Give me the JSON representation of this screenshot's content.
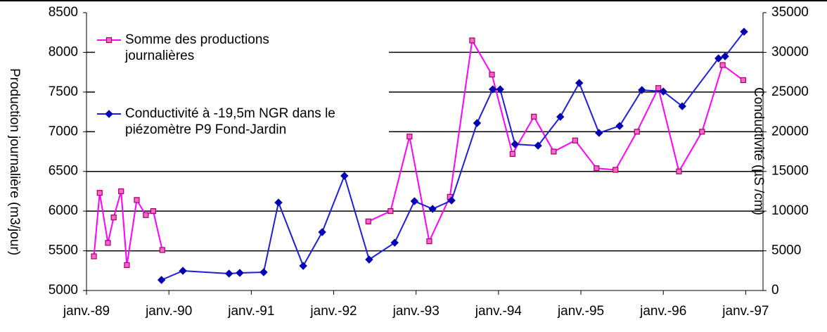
{
  "chart_data": {
    "type": "line",
    "y_label": "Production journalière (m3/jour)",
    "y2_label": "Conductivité (µS /cm)",
    "xlim": [
      1989,
      1997.21
    ],
    "xticks": [
      {
        "value": 1989,
        "label": "janv.-89"
      },
      {
        "value": 1990,
        "label": "janv.-90"
      },
      {
        "value": 1991,
        "label": "janv.-91"
      },
      {
        "value": 1992,
        "label": "janv.-92"
      },
      {
        "value": 1993,
        "label": "janv.-93"
      },
      {
        "value": 1994,
        "label": "janv.-94"
      },
      {
        "value": 1995,
        "label": "janv.-95"
      },
      {
        "value": 1996,
        "label": "janv.-96"
      },
      {
        "value": 1997,
        "label": "janv.-97"
      }
    ],
    "ylim": [
      5000,
      8500
    ],
    "yticks": [
      5000,
      5500,
      6000,
      6500,
      7000,
      7500,
      8000,
      8500
    ],
    "y2lim": [
      0,
      35000
    ],
    "y2ticks": [
      0,
      5000,
      10000,
      15000,
      20000,
      25000,
      30000,
      35000
    ],
    "grid": true,
    "legend": "upper left",
    "series": [
      {
        "name": "Somme des productions journalières",
        "color": "#ff00ff",
        "marker": "square",
        "axis": "y",
        "x": [
          1989.09,
          1989.16,
          1989.26,
          1989.33,
          1989.42,
          1989.49,
          1989.61,
          1989.72,
          1989.81,
          1989.92,
          null,
          1992.42,
          1992.69,
          1992.92,
          1993.16,
          1993.41,
          1993.68,
          1993.92,
          1994.17,
          1994.43,
          1994.67,
          1994.93,
          1995.19,
          1995.42,
          1995.68,
          1995.94,
          1996.19,
          1996.47,
          1996.72,
          1996.97
        ],
        "values": [
          5430,
          6230,
          5600,
          5920,
          6250,
          5320,
          6140,
          5950,
          6000,
          5510,
          null,
          5870,
          6000,
          6940,
          5620,
          6180,
          8150,
          7720,
          6720,
          7190,
          6750,
          6890,
          6540,
          6520,
          7000,
          7550,
          6500,
          7000,
          7840,
          7650
        ]
      },
      {
        "name": "Conductivité à -19,5m NGR dans le piézomètre P9 Fond-Jardin",
        "color": "#1f1fd6",
        "marker": "diamond",
        "axis": "y2",
        "x": [
          1989.91,
          1990.17,
          1990.73,
          1990.86,
          1991.15,
          1991.33,
          1991.63,
          1991.86,
          1992.13,
          1992.43,
          1992.74,
          1992.98,
          1993.2,
          1993.43,
          1993.74,
          1993.93,
          1994.02,
          1994.2,
          1994.48,
          1994.75,
          1994.98,
          1995.22,
          1995.47,
          1995.74,
          1996.0,
          1996.23,
          1996.67,
          1996.75,
          1996.98
        ],
        "values": [
          1330,
          2480,
          2130,
          2220,
          2300,
          11080,
          3100,
          7350,
          14440,
          3900,
          6020,
          11250,
          10280,
          11340,
          21090,
          25340,
          25340,
          18430,
          18250,
          21880,
          26140,
          19850,
          20730,
          25250,
          25070,
          23210,
          29240,
          29500,
          32600
        ]
      }
    ]
  }
}
